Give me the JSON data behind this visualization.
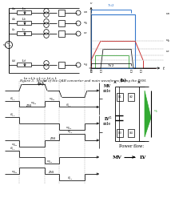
{
  "fig_width": 2.06,
  "fig_height": 2.45,
  "bg_color": "#ffffff",
  "blue_color": "#3377cc",
  "red_color": "#cc3333",
  "green_color": "#33aa33",
  "gray_color": "#999999",
  "dark": "#222222"
}
